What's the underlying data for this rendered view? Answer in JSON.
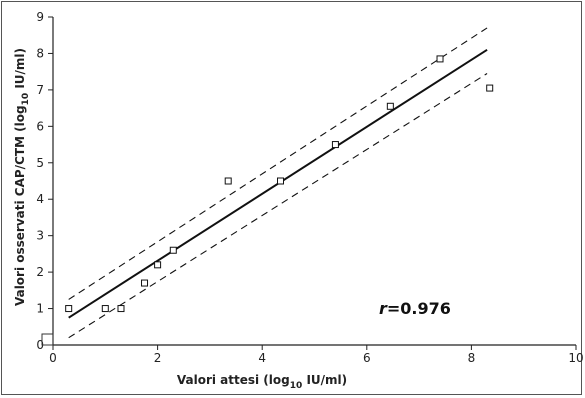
{
  "chart_data": {
    "type": "scatter",
    "xlabel": {
      "prefix": "Valori attesi (log",
      "sub": "10",
      "suffix": " IU/ml)"
    },
    "ylabel": {
      "prefix": "Valori osservati CAP/CTM (log",
      "sub": "10",
      "suffix": " IU/ml)"
    },
    "xlim": [
      0,
      10
    ],
    "ylim": [
      0,
      9
    ],
    "x_ticks": [
      0,
      2,
      4,
      6,
      8,
      10
    ],
    "y_ticks": [
      0,
      1,
      2,
      3,
      4,
      5,
      6,
      7,
      8,
      9
    ],
    "grid": false,
    "points": [
      {
        "x": 0.3,
        "y": 1.0
      },
      {
        "x": 1.0,
        "y": 1.0
      },
      {
        "x": 1.3,
        "y": 1.0
      },
      {
        "x": 1.75,
        "y": 1.7
      },
      {
        "x": 2.0,
        "y": 2.2
      },
      {
        "x": 2.3,
        "y": 2.6
      },
      {
        "x": 3.35,
        "y": 4.5
      },
      {
        "x": 4.35,
        "y": 4.5
      },
      {
        "x": 5.4,
        "y": 5.5
      },
      {
        "x": 6.45,
        "y": 6.55
      },
      {
        "x": 7.4,
        "y": 7.85
      },
      {
        "x": 8.35,
        "y": 7.05
      }
    ],
    "regression_line": {
      "x": [
        0.3,
        8.3
      ],
      "y": [
        0.75,
        8.1
      ]
    },
    "confidence_upper": {
      "x": [
        0.3,
        8.3
      ],
      "y": [
        1.25,
        8.7
      ]
    },
    "confidence_lower": {
      "x": [
        0.3,
        8.3
      ],
      "y": [
        0.2,
        7.45
      ]
    },
    "annotation": {
      "label_italic": "r",
      "label_rest": "=0.976"
    }
  }
}
